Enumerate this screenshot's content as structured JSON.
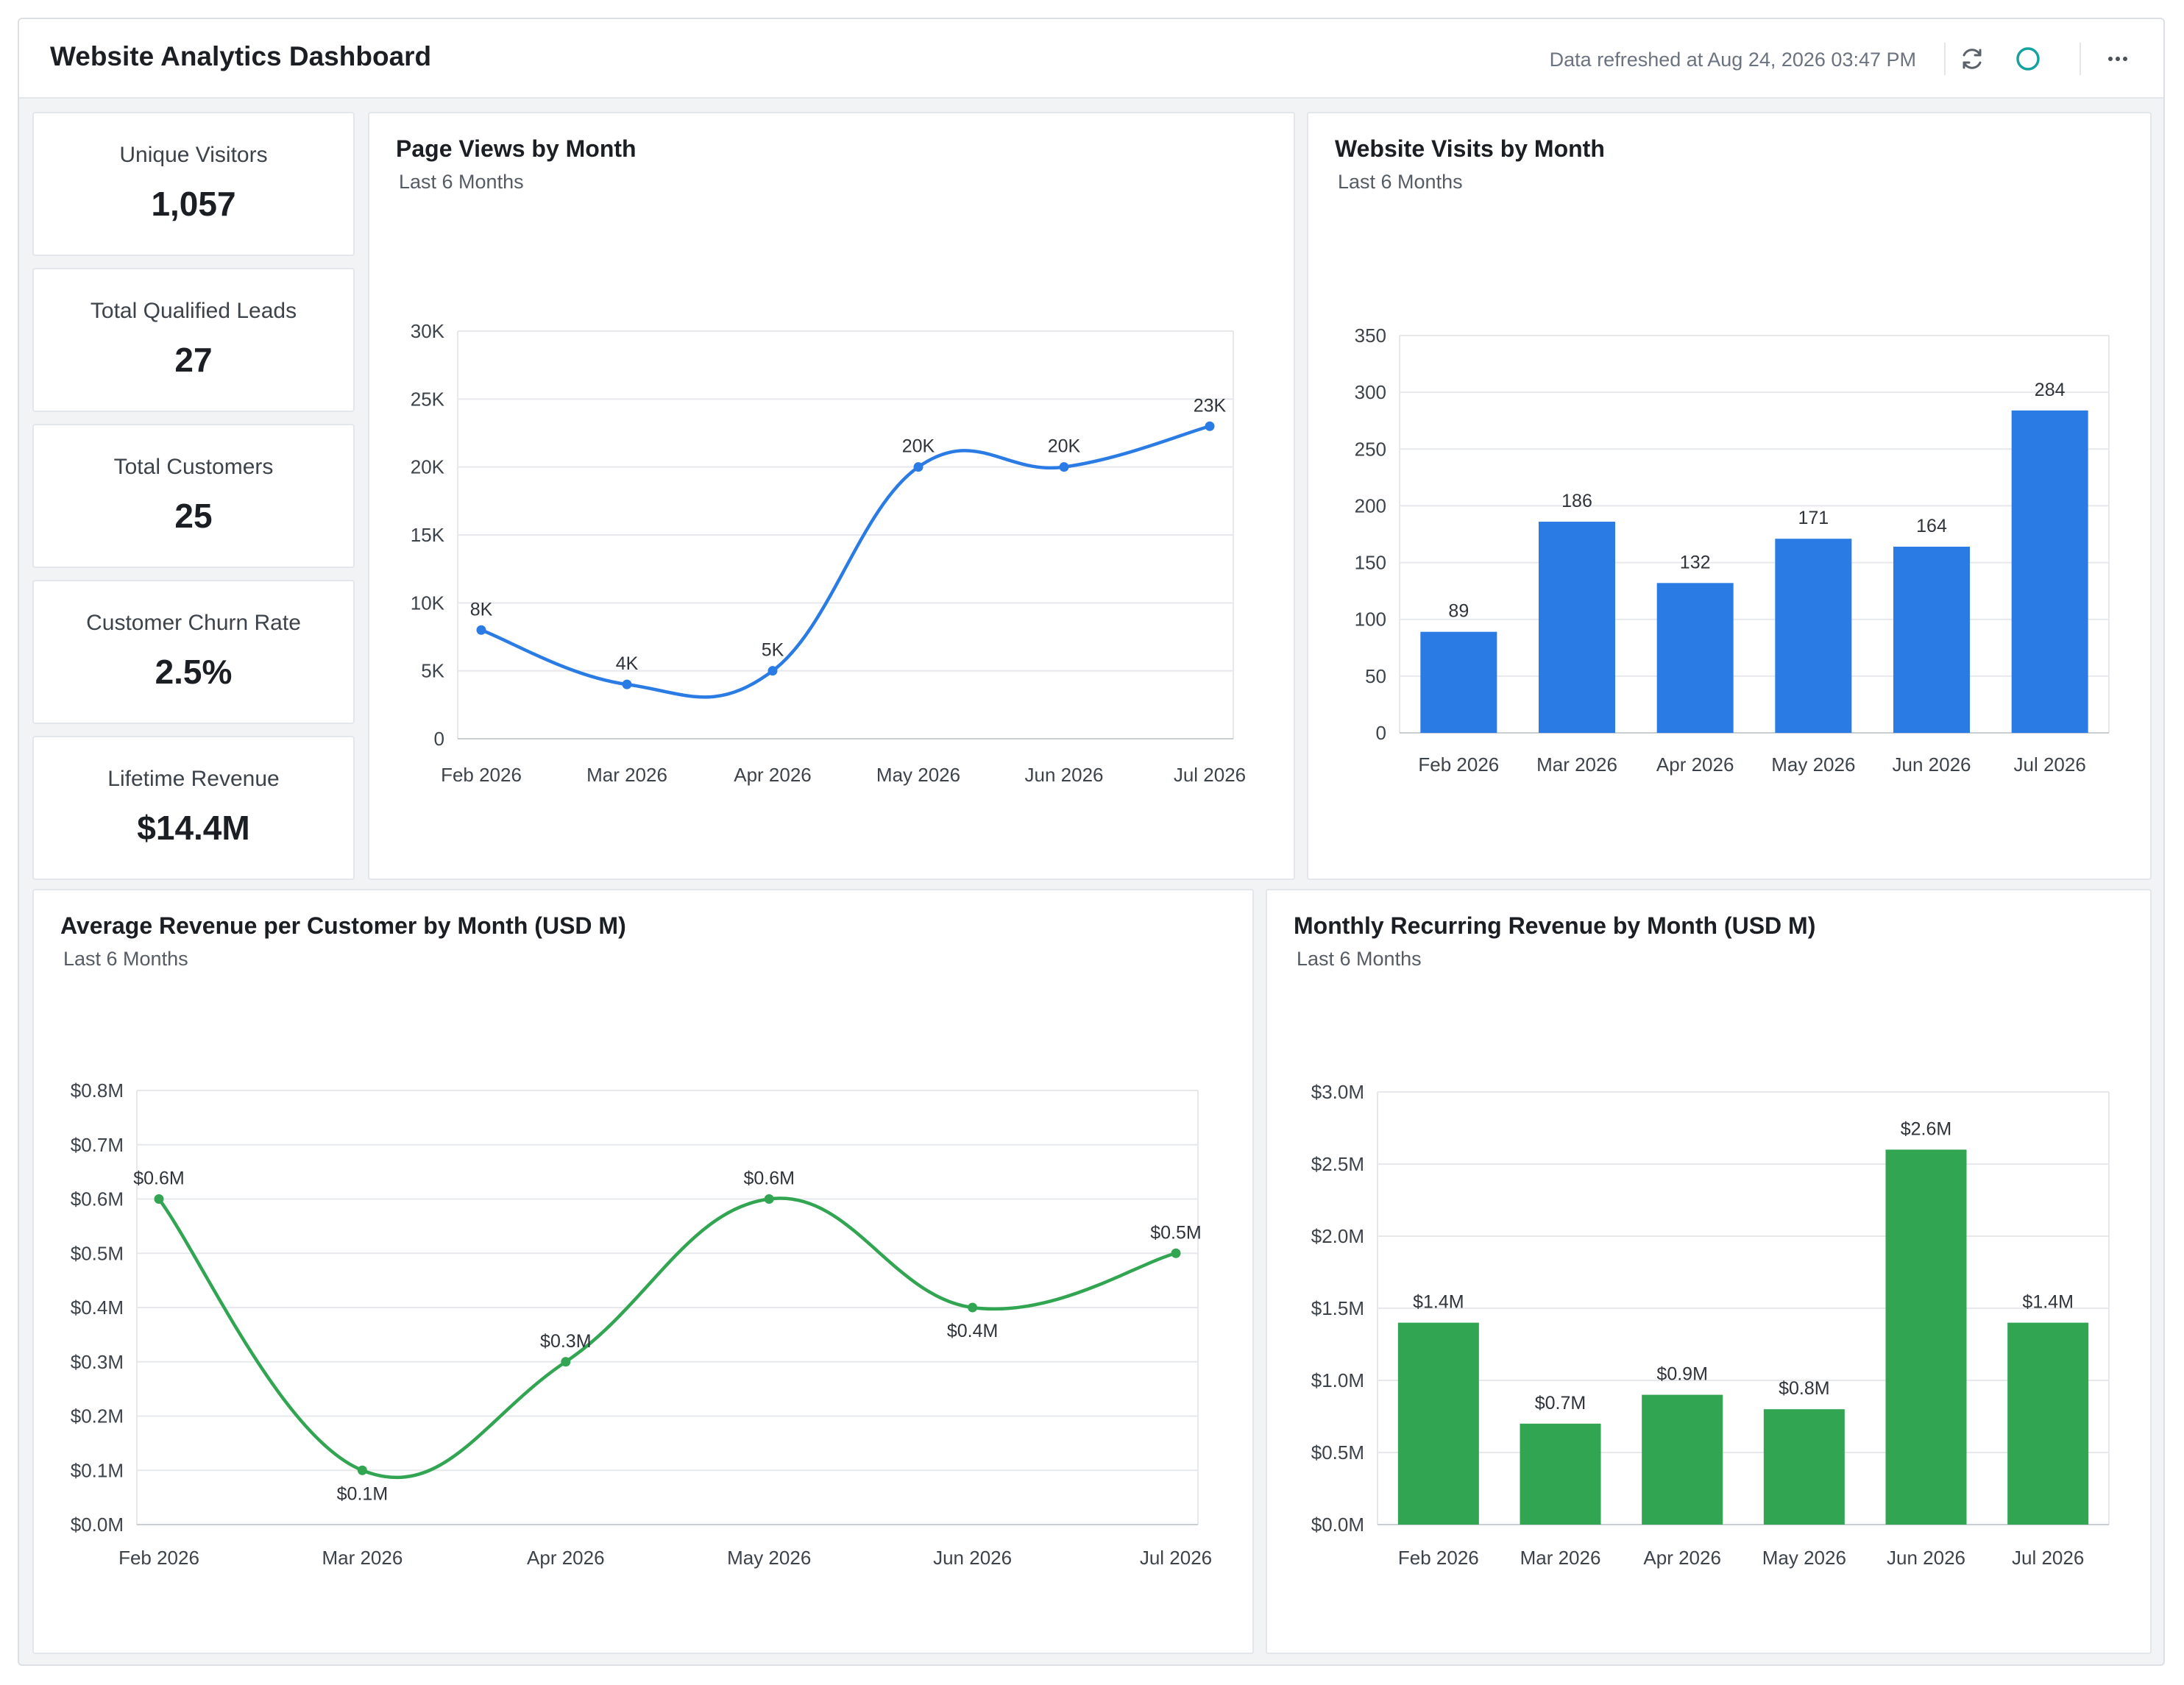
{
  "header": {
    "title": "Website Analytics Dashboard",
    "refreshed": "Data refreshed at Aug 24, 2026 03:47 PM",
    "icons": [
      "refresh-icon",
      "status-circle-icon",
      "more-options-icon"
    ]
  },
  "colors": {
    "blue": "#2b7be4",
    "green": "#31a552",
    "grid": "#e6e8eb",
    "axis_text": "#3d434a"
  },
  "kpis": [
    {
      "label": "Unique Visitors",
      "value": "1,057"
    },
    {
      "label": "Total Qualified Leads",
      "value": "27"
    },
    {
      "label": "Total Customers",
      "value": "25"
    },
    {
      "label": "Customer Churn Rate",
      "value": "2.5%"
    },
    {
      "label": "Lifetime Revenue",
      "value": "$14.4M"
    }
  ],
  "chart_data": [
    {
      "type": "line",
      "title": "Page Views by Month",
      "subtitle": "Last 6 Months",
      "categories": [
        "Feb 2026",
        "Mar 2026",
        "Apr 2026",
        "May 2026",
        "Jun 2026",
        "Jul 2026"
      ],
      "values": [
        8000,
        4000,
        5000,
        20000,
        20000,
        23000
      ],
      "data_labels": [
        "8K",
        "4K",
        "5K",
        "20K",
        "20K",
        "23K"
      ],
      "yticks": [
        "0",
        "5K",
        "10K",
        "15K",
        "20K",
        "25K",
        "30K"
      ],
      "ylim": [
        0,
        30000
      ],
      "grid": true,
      "smooth": true,
      "color": "#2b7be4"
    },
    {
      "type": "bar",
      "title": "Website Visits by Month",
      "subtitle": "Last 6 Months",
      "categories": [
        "Feb 2026",
        "Mar 2026",
        "Apr 2026",
        "May 2026",
        "Jun 2026",
        "Jul 2026"
      ],
      "values": [
        89,
        186,
        132,
        171,
        164,
        284
      ],
      "data_labels": [
        "89",
        "186",
        "132",
        "171",
        "164",
        "284"
      ],
      "yticks": [
        "0",
        "50",
        "100",
        "150",
        "200",
        "250",
        "300",
        "350"
      ],
      "ylim": [
        0,
        350
      ],
      "grid": true,
      "color": "#2b7be4"
    },
    {
      "type": "line",
      "title": "Average Revenue per Customer by Month (USD M)",
      "subtitle": "Last 6 Months",
      "categories": [
        "Feb 2026",
        "Mar 2026",
        "Apr 2026",
        "May 2026",
        "Jun 2026",
        "Jul 2026"
      ],
      "values": [
        0.6,
        0.1,
        0.3,
        0.6,
        0.4,
        0.5
      ],
      "data_labels": [
        "$0.6M",
        "$0.1M",
        "$0.3M",
        "$0.6M",
        "$0.4M",
        "$0.5M"
      ],
      "yticks": [
        "$0.0M",
        "$0.1M",
        "$0.2M",
        "$0.3M",
        "$0.4M",
        "$0.5M",
        "$0.6M",
        "$0.7M",
        "$0.8M"
      ],
      "ylim": [
        0,
        0.8
      ],
      "grid": true,
      "smooth": true,
      "color": "#31a552"
    },
    {
      "type": "bar",
      "title": "Monthly Recurring Revenue by Month (USD M)",
      "subtitle": "Last 6 Months",
      "categories": [
        "Feb 2026",
        "Mar 2026",
        "Apr 2026",
        "May 2026",
        "Jun 2026",
        "Jul 2026"
      ],
      "values": [
        1.4,
        0.7,
        0.9,
        0.8,
        2.6,
        1.4
      ],
      "data_labels": [
        "$1.4M",
        "$0.7M",
        "$0.9M",
        "$0.8M",
        "$2.6M",
        "$1.4M"
      ],
      "yticks": [
        "$0.0M",
        "$0.5M",
        "$1.0M",
        "$1.5M",
        "$2.0M",
        "$2.5M",
        "$3.0M"
      ],
      "ylim": [
        0,
        3.0
      ],
      "grid": true,
      "color": "#31a552"
    }
  ]
}
